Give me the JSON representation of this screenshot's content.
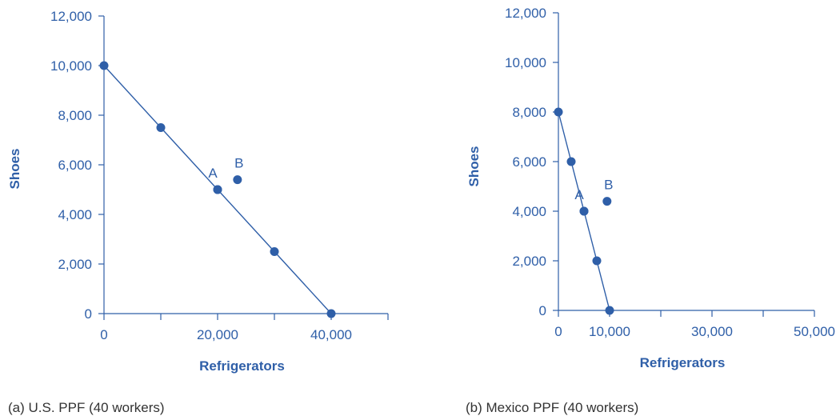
{
  "colors": {
    "accent": "#2f5fa8",
    "caption": "#333333"
  },
  "chart_data": [
    {
      "type": "line",
      "caption": "(a) U.S. PPF (40 workers)",
      "xlabel": "Refrigerators",
      "ylabel": "Shoes",
      "xlim": [
        0,
        50000
      ],
      "ylim": [
        0,
        12000
      ],
      "xticks": [
        0,
        10000,
        20000,
        30000,
        40000,
        50000
      ],
      "xtick_labels": [
        "0",
        "",
        "20,000",
        "",
        "40,000",
        ""
      ],
      "yticks": [
        0,
        2000,
        4000,
        6000,
        8000,
        10000,
        12000
      ],
      "ytick_labels": [
        "0",
        "2,000",
        "4,000",
        "6,000",
        "8,000",
        "10,000",
        "12,000"
      ],
      "grid": false,
      "series": [
        {
          "x": [
            0,
            10000,
            20000,
            30000,
            40000
          ],
          "y": [
            10000,
            7500,
            5000,
            2500,
            0
          ]
        }
      ],
      "points": [
        {
          "label": "A",
          "x": 20000,
          "y": 5000
        },
        {
          "label": "B",
          "x": 23500,
          "y": 5400
        }
      ]
    },
    {
      "type": "line",
      "caption": "(b) Mexico PPF (40 workers)",
      "xlabel": "Refrigerators",
      "ylabel": "Shoes",
      "xlim": [
        0,
        50000
      ],
      "ylim": [
        0,
        12000
      ],
      "xticks": [
        0,
        10000,
        20000,
        30000,
        40000,
        50000
      ],
      "xtick_labels": [
        "0",
        "10,000",
        "",
        "30,000",
        "",
        "50,000"
      ],
      "yticks": [
        0,
        2000,
        4000,
        6000,
        8000,
        10000,
        12000
      ],
      "ytick_labels": [
        "0",
        "2,000",
        "4,000",
        "6,000",
        "8,000",
        "10,000",
        "12,000"
      ],
      "grid": false,
      "series": [
        {
          "x": [
            0,
            2500,
            5000,
            7500,
            10000
          ],
          "y": [
            8000,
            6000,
            4000,
            2000,
            0
          ]
        }
      ],
      "points": [
        {
          "label": "A",
          "x": 5000,
          "y": 4000
        },
        {
          "label": "B",
          "x": 9500,
          "y": 4400
        }
      ]
    }
  ]
}
